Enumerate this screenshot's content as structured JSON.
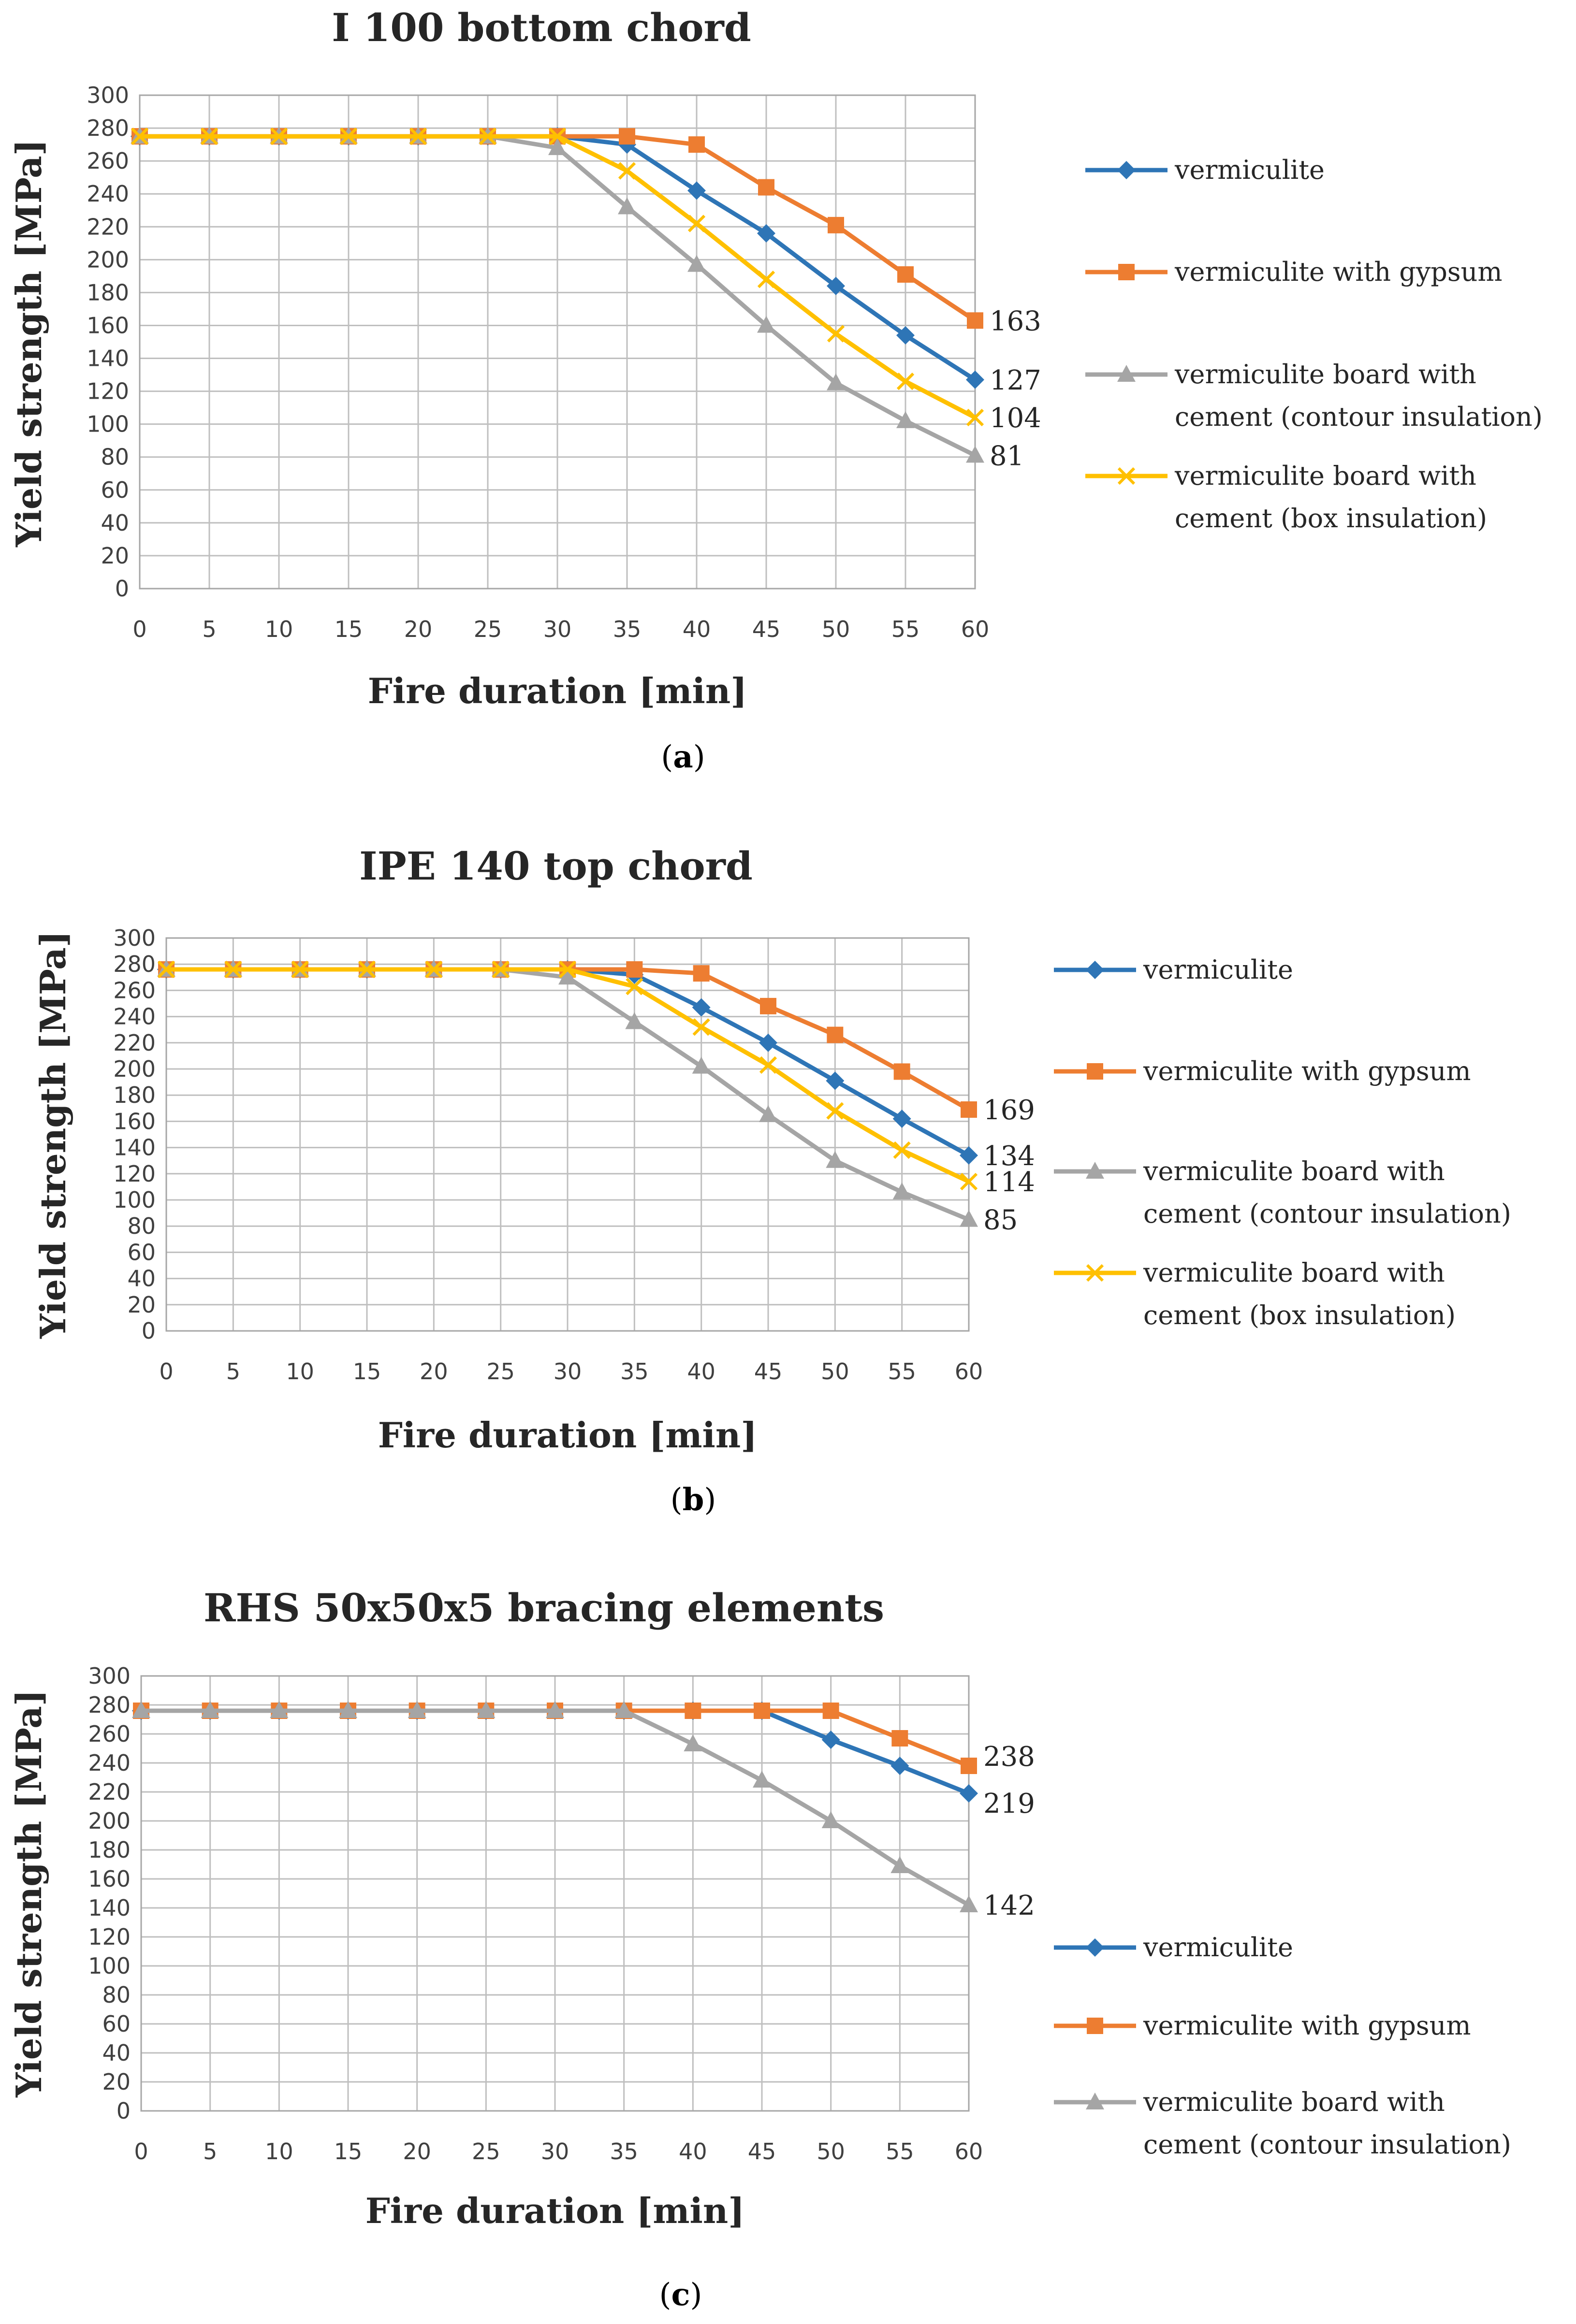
{
  "chart_data": [
    {
      "type": "line",
      "caption": "a",
      "title": "I 100 bottom chord",
      "xlabel": "Fire duration [min]",
      "ylabel": "Yield strength [MPa]",
      "x": [
        0,
        5,
        10,
        15,
        20,
        25,
        30,
        35,
        40,
        45,
        50,
        55,
        60
      ],
      "x_tick_labels": [
        "0",
        "5",
        "10",
        "15",
        "20",
        "25",
        "30",
        "35",
        "40",
        "45",
        "50",
        "55",
        "60"
      ],
      "ylim": [
        0,
        300
      ],
      "y_tick_labels": [
        "0",
        "20",
        "40",
        "60",
        "80",
        "100",
        "120",
        "140",
        "160",
        "180",
        "200",
        "220",
        "240",
        "260",
        "280",
        "300"
      ],
      "grid": true,
      "legend_position": "right",
      "series": [
        {
          "name": "vermiculite",
          "color": "#2e75b6",
          "marker": "diamond",
          "values": [
            275,
            275,
            275,
            275,
            275,
            275,
            275,
            270,
            242,
            216,
            184,
            154,
            127
          ],
          "end_label": "127"
        },
        {
          "name": "vermiculite with gypsum",
          "color": "#ed7d31",
          "marker": "square",
          "values": [
            275,
            275,
            275,
            275,
            275,
            275,
            275,
            275,
            270,
            244,
            221,
            191,
            163
          ],
          "end_label": "163"
        },
        {
          "name": "vermiculite board with cement (contour insulation)",
          "legend_lines": [
            "vermiculite board with",
            "cement (contour insulation)"
          ],
          "color": "#a5a5a5",
          "marker": "triangle",
          "values": [
            275,
            275,
            275,
            275,
            275,
            275,
            268,
            232,
            197,
            160,
            125,
            102,
            81
          ],
          "end_label": "81"
        },
        {
          "name": "vermiculite board with cement (box insulation)",
          "legend_lines": [
            "vermiculite board with",
            "cement (box insulation)"
          ],
          "color": "#ffc000",
          "marker": "x",
          "values": [
            275,
            275,
            275,
            275,
            275,
            275,
            275,
            254,
            222,
            188,
            155,
            126,
            104
          ],
          "end_label": "104"
        }
      ]
    },
    {
      "type": "line",
      "caption": "b",
      "title": "IPE 140 top chord",
      "xlabel": "Fire duration [min]",
      "ylabel": "Yield strength [MPa]",
      "x": [
        0,
        5,
        10,
        15,
        20,
        25,
        30,
        35,
        40,
        45,
        50,
        55,
        60
      ],
      "x_tick_labels": [
        "0",
        "5",
        "10",
        "15",
        "20",
        "25",
        "30",
        "35",
        "40",
        "45",
        "50",
        "55",
        "60"
      ],
      "ylim": [
        0,
        300
      ],
      "y_tick_labels": [
        "0",
        "20",
        "40",
        "60",
        "80",
        "100",
        "120",
        "140",
        "160",
        "180",
        "200",
        "220",
        "240",
        "260",
        "280",
        "300"
      ],
      "grid": true,
      "legend_position": "right",
      "series": [
        {
          "name": "vermiculite",
          "color": "#2e75b6",
          "marker": "diamond",
          "values": [
            276,
            276,
            276,
            276,
            276,
            276,
            276,
            272,
            247,
            220,
            191,
            162,
            134
          ],
          "end_label": "134"
        },
        {
          "name": "vermiculite with gypsum",
          "color": "#ed7d31",
          "marker": "square",
          "values": [
            276,
            276,
            276,
            276,
            276,
            276,
            276,
            276,
            273,
            248,
            226,
            198,
            169
          ],
          "end_label": "169"
        },
        {
          "name": "vermiculite board with cement (contour insulation)",
          "legend_lines": [
            "vermiculite board with",
            "cement (contour insulation)"
          ],
          "color": "#a5a5a5",
          "marker": "triangle",
          "values": [
            276,
            276,
            276,
            276,
            276,
            276,
            270,
            236,
            202,
            165,
            130,
            106,
            85
          ],
          "end_label": "85"
        },
        {
          "name": "vermiculite board with cement (box insulation)",
          "legend_lines": [
            "vermiculite board with",
            "cement (box insulation)"
          ],
          "color": "#ffc000",
          "marker": "x",
          "values": [
            276,
            276,
            276,
            276,
            276,
            276,
            276,
            263,
            232,
            203,
            168,
            138,
            114
          ],
          "end_label": "114"
        }
      ]
    },
    {
      "type": "line",
      "caption": "c",
      "title": "RHS 50x50x5 bracing elements",
      "xlabel": "Fire duration [min]",
      "ylabel": "Yield strength [MPa]",
      "x": [
        0,
        5,
        10,
        15,
        20,
        25,
        30,
        35,
        40,
        45,
        50,
        55,
        60
      ],
      "x_tick_labels": [
        "0",
        "5",
        "10",
        "15",
        "20",
        "25",
        "30",
        "35",
        "40",
        "45",
        "50",
        "55",
        "60"
      ],
      "ylim": [
        0,
        300
      ],
      "y_tick_labels": [
        "0",
        "20",
        "40",
        "60",
        "80",
        "100",
        "120",
        "140",
        "160",
        "180",
        "200",
        "220",
        "240",
        "260",
        "280",
        "300"
      ],
      "grid": true,
      "legend_position": "right",
      "series": [
        {
          "name": "vermiculite",
          "color": "#2e75b6",
          "marker": "diamond",
          "values": [
            276,
            276,
            276,
            276,
            276,
            276,
            276,
            276,
            276,
            276,
            256,
            238,
            219
          ],
          "end_label": "219"
        },
        {
          "name": "vermiculite with gypsum",
          "color": "#ed7d31",
          "marker": "square",
          "values": [
            276,
            276,
            276,
            276,
            276,
            276,
            276,
            276,
            276,
            276,
            276,
            257,
            238
          ],
          "end_label": "238"
        },
        {
          "name": "vermiculite board with cement (contour insulation)",
          "legend_lines": [
            "vermiculite board with",
            "cement (contour insulation)"
          ],
          "color": "#a5a5a5",
          "marker": "triangle",
          "values": [
            276,
            276,
            276,
            276,
            276,
            276,
            276,
            276,
            253,
            228,
            200,
            169,
            142
          ],
          "end_label": "142"
        }
      ]
    }
  ]
}
